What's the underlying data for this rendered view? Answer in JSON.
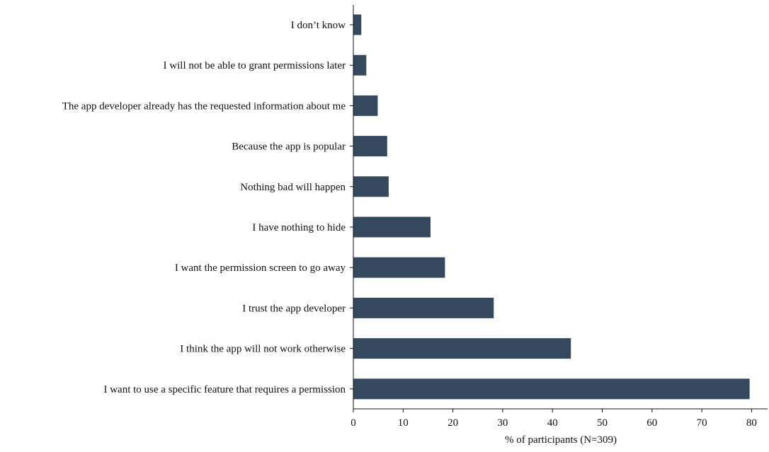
{
  "chart_data": {
    "type": "bar",
    "orientation": "horizontal",
    "categories": [
      "I don’t know",
      "I will not be able to grant permissions later",
      "The app developer already has the requested information about me",
      "Because the app is popular",
      "Nothing bad will happen",
      "I have nothing to hide",
      "I want the permission screen to go away",
      "I trust the app developer",
      "I think the app will not work otherwise",
      "I want to use a specific feature that requires a permission"
    ],
    "values": [
      1.6,
      2.6,
      4.9,
      6.8,
      7.1,
      15.5,
      18.4,
      28.2,
      43.7,
      79.6
    ],
    "xlabel": "% of participants (N=309)",
    "ylabel": "",
    "xlim": [
      0,
      83
    ],
    "xticks": [
      0,
      10,
      20,
      30,
      40,
      50,
      60,
      70,
      80
    ],
    "xtick_labels": [
      "0",
      "10",
      "20",
      "30",
      "40",
      "50",
      "60",
      "70",
      "80"
    ],
    "bar_color": "#34495e",
    "grid": false,
    "legend": "none"
  }
}
